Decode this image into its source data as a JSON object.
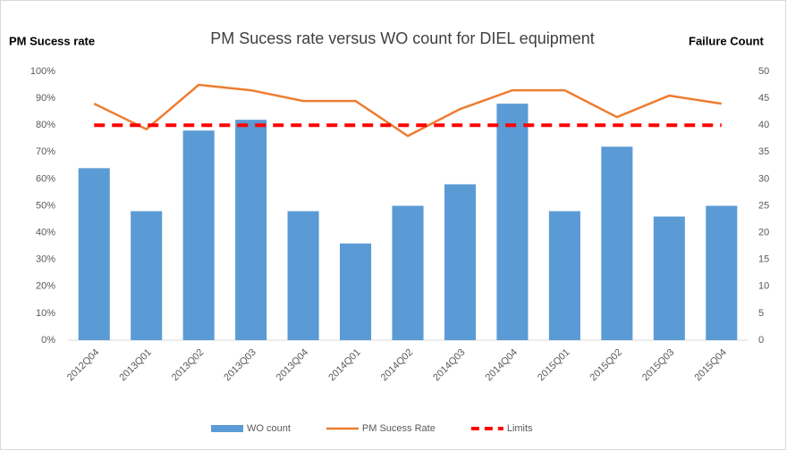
{
  "chart_data": {
    "type": "bar",
    "title": "PM Sucess rate versus WO count for DIEL equipment",
    "y_label": "PM Sucess rate",
    "y2_label": "Failure Count",
    "categories": [
      "2012Q04",
      "2013Q01",
      "2013Q02",
      "2013Q03",
      "2013Q04",
      "2014Q01",
      "2014Q02",
      "2014Q03",
      "2014Q04",
      "2015Q01",
      "2015Q02",
      "2015Q03",
      "2015Q04"
    ],
    "series": [
      {
        "name": "WO count",
        "type": "bar",
        "axis": "y2",
        "color": "#5b9bd5",
        "values": [
          32,
          24,
          39,
          41,
          24,
          18,
          25,
          29,
          44,
          24,
          36,
          23,
          25
        ]
      },
      {
        "name": "PM Sucess Rate",
        "type": "line",
        "color": "#ed7d31",
        "values": [
          88,
          78.5,
          95,
          93,
          89,
          89,
          76,
          86,
          93,
          93,
          83,
          91,
          88
        ]
      },
      {
        "name": "Limits",
        "type": "line",
        "dashed": true,
        "color": "#ff0000",
        "values": [
          80,
          80,
          80,
          80,
          80,
          80,
          80,
          80,
          80,
          80,
          80,
          80,
          80
        ]
      }
    ],
    "ylim": [
      0,
      100
    ],
    "yticks": [
      {
        "value": 0,
        "label": "0%"
      },
      {
        "value": 10,
        "label": "10%"
      },
      {
        "value": 20,
        "label": "20%"
      },
      {
        "value": 30,
        "label": "30%"
      },
      {
        "value": 40,
        "label": "40%"
      },
      {
        "value": 50,
        "label": "50%"
      },
      {
        "value": 60,
        "label": "60%"
      },
      {
        "value": 70,
        "label": "70%"
      },
      {
        "value": 80,
        "label": "80%"
      },
      {
        "value": 90,
        "label": "90%"
      },
      {
        "value": 100,
        "label": "100%"
      }
    ],
    "y2lim": [
      0,
      50
    ],
    "y2ticks": [
      0,
      5,
      10,
      15,
      20,
      25,
      30,
      35,
      40,
      45,
      50
    ],
    "grid": false,
    "legend": "bottom"
  }
}
